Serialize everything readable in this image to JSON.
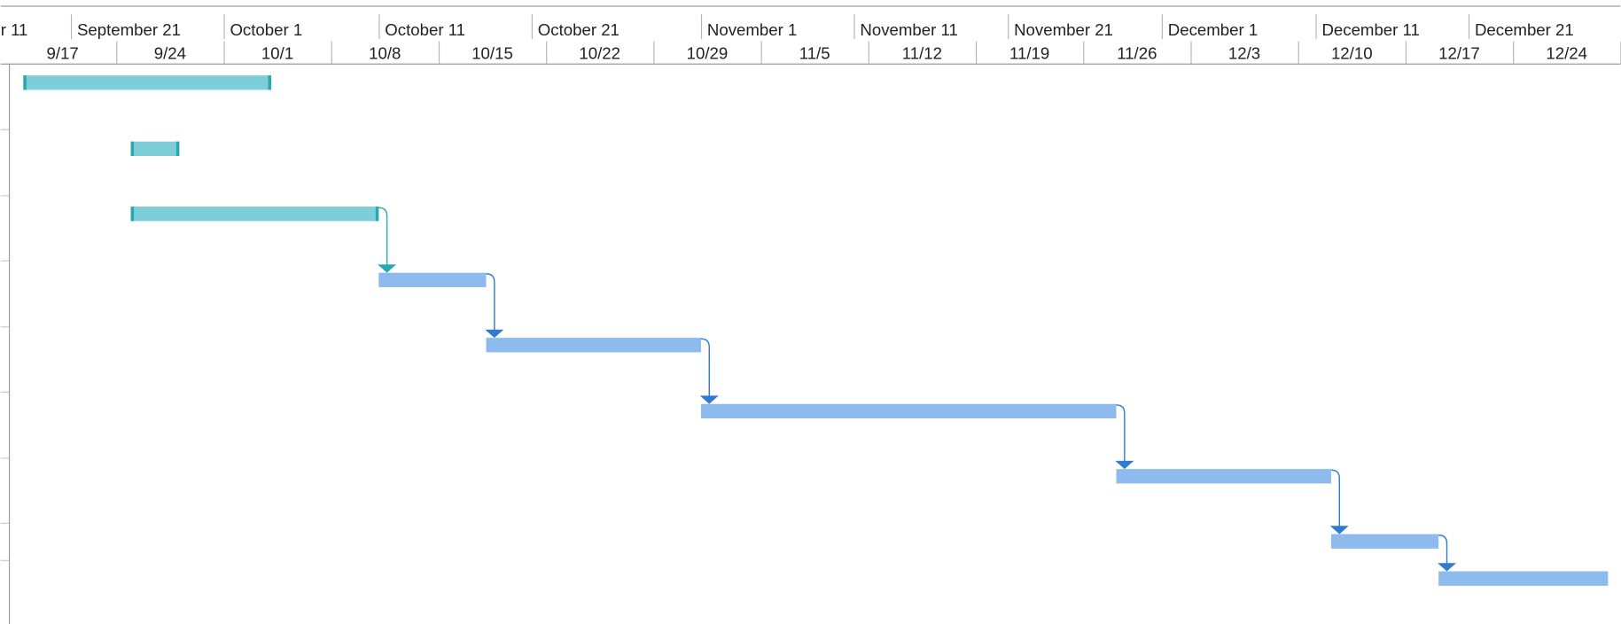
{
  "header": {
    "top_tier": [
      "r 11",
      "September 21",
      "October 1",
      "October 11",
      "October 21",
      "November 1",
      "November 11",
      "November 21",
      "December 1",
      "December 11",
      "December 21"
    ],
    "bottom_tier": [
      "9/17",
      "9/24",
      "10/1",
      "10/8",
      "10/15",
      "10/22",
      "10/29",
      "11/5",
      "11/12",
      "11/19",
      "11/26",
      "12/3",
      "12/10",
      "12/17",
      "12/24"
    ]
  }
}
